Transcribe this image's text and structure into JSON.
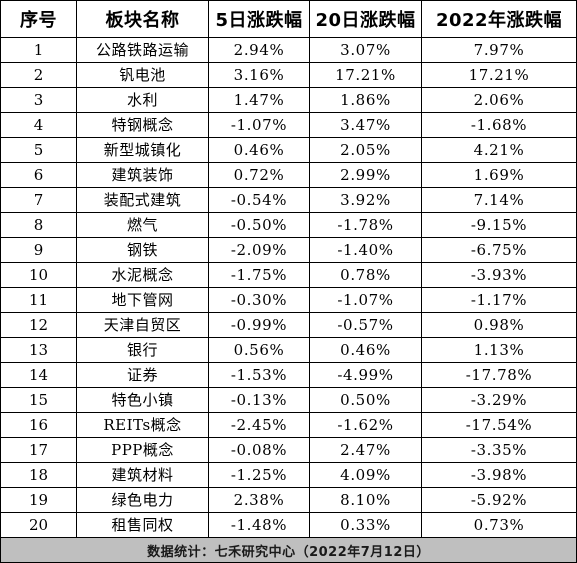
{
  "table": {
    "headers": [
      "序号",
      "板块名称",
      "5日涨跌幅",
      "20日涨跌幅",
      "2022年涨跌幅"
    ],
    "rows": [
      [
        "1",
        "公路铁路运输",
        "2.94%",
        "3.07%",
        "7.97%"
      ],
      [
        "2",
        "钒电池",
        "3.16%",
        "17.21%",
        "17.21%"
      ],
      [
        "3",
        "水利",
        "1.47%",
        "1.86%",
        "2.06%"
      ],
      [
        "4",
        "特钢概念",
        "-1.07%",
        "3.47%",
        "-1.68%"
      ],
      [
        "5",
        "新型城镇化",
        "0.46%",
        "2.05%",
        "4.21%"
      ],
      [
        "6",
        "建筑装饰",
        "0.72%",
        "2.99%",
        "1.69%"
      ],
      [
        "7",
        "装配式建筑",
        "-0.54%",
        "3.92%",
        "7.14%"
      ],
      [
        "8",
        "燃气",
        "-0.50%",
        "-1.78%",
        "-9.15%"
      ],
      [
        "9",
        "钢铁",
        "-2.09%",
        "-1.40%",
        "-6.75%"
      ],
      [
        "10",
        "水泥概念",
        "-1.75%",
        "0.78%",
        "-3.93%"
      ],
      [
        "11",
        "地下管网",
        "-0.30%",
        "-1.07%",
        "-1.17%"
      ],
      [
        "12",
        "天津自贸区",
        "-0.99%",
        "-0.57%",
        "0.98%"
      ],
      [
        "13",
        "银行",
        "0.56%",
        "0.46%",
        "1.13%"
      ],
      [
        "14",
        "证券",
        "-1.53%",
        "-4.99%",
        "-17.78%"
      ],
      [
        "15",
        "特色小镇",
        "-0.13%",
        "0.50%",
        "-3.29%"
      ],
      [
        "16",
        "REITs概念",
        "-2.45%",
        "-1.62%",
        "-17.54%"
      ],
      [
        "17",
        "PPP概念",
        "-0.08%",
        "2.47%",
        "-3.35%"
      ],
      [
        "18",
        "建筑材料",
        "-1.25%",
        "4.09%",
        "-3.98%"
      ],
      [
        "19",
        "绿色电力",
        "2.38%",
        "8.10%",
        "-5.92%"
      ],
      [
        "20",
        "租售同权",
        "-1.48%",
        "0.33%",
        "0.73%"
      ]
    ],
    "footer": "数据统计：七禾研究中心（2022年7月12日）"
  }
}
